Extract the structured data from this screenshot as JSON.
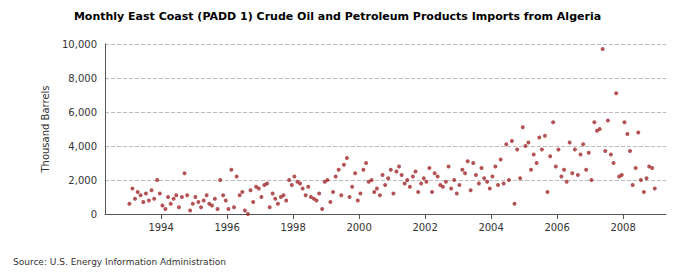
{
  "chart_data": {
    "type": "scatter",
    "title": "Monthly East Coast (PADD 1) Crude Oil and Petroleum Products Imports from Algeria",
    "y_label": "Thousand Barrels",
    "annotations": [
      "Source: U.S. Energy Information Administration"
    ],
    "color": "#a0282a",
    "marker": "circle",
    "grid": true,
    "xlim": [
      1992.3,
      2009.3
    ],
    "xticks": [
      1994,
      1996,
      1998,
      2000,
      2002,
      2004,
      2006,
      2008
    ],
    "ylim": [
      0,
      10000
    ],
    "yticks": [
      0,
      {
        "value": 2000,
        "label": "2,000"
      },
      {
        "value": 4000,
        "label": "4,000"
      },
      {
        "value": 6000,
        "label": "6,000"
      },
      {
        "value": 8000,
        "label": "8,000"
      },
      {
        "value": 10000,
        "label": "10,000"
      }
    ],
    "x": [
      1993.04,
      1993.13,
      1993.21,
      1993.29,
      1993.38,
      1993.46,
      1993.54,
      1993.63,
      1993.71,
      1993.79,
      1993.88,
      1993.96,
      1994.04,
      1994.13,
      1994.21,
      1994.29,
      1994.38,
      1994.46,
      1994.54,
      1994.63,
      1994.71,
      1994.79,
      1994.88,
      1994.96,
      1995.04,
      1995.13,
      1995.21,
      1995.29,
      1995.38,
      1995.46,
      1995.54,
      1995.63,
      1995.71,
      1995.79,
      1995.88,
      1995.96,
      1996.04,
      1996.13,
      1996.21,
      1996.29,
      1996.38,
      1996.46,
      1996.54,
      1996.63,
      1996.71,
      1996.79,
      1996.88,
      1996.96,
      1997.04,
      1997.13,
      1997.21,
      1997.29,
      1997.38,
      1997.46,
      1997.54,
      1997.63,
      1997.71,
      1997.79,
      1997.88,
      1997.96,
      1998.04,
      1998.13,
      1998.21,
      1998.29,
      1998.38,
      1998.46,
      1998.54,
      1998.63,
      1998.71,
      1998.79,
      1998.88,
      1998.96,
      1999.04,
      1999.13,
      1999.21,
      1999.29,
      1999.38,
      1999.46,
      1999.54,
      1999.63,
      1999.71,
      1999.79,
      1999.88,
      1999.96,
      2000.04,
      2000.13,
      2000.21,
      2000.29,
      2000.38,
      2000.46,
      2000.54,
      2000.63,
      2000.71,
      2000.79,
      2000.88,
      2000.96,
      2001.04,
      2001.13,
      2001.21,
      2001.29,
      2001.38,
      2001.46,
      2001.54,
      2001.63,
      2001.71,
      2001.79,
      2001.88,
      2001.96,
      2002.04,
      2002.13,
      2002.21,
      2002.29,
      2002.38,
      2002.46,
      2002.54,
      2002.63,
      2002.71,
      2002.79,
      2002.88,
      2002.96,
      2003.04,
      2003.13,
      2003.21,
      2003.29,
      2003.38,
      2003.46,
      2003.54,
      2003.63,
      2003.71,
      2003.79,
      2003.88,
      2003.96,
      2004.04,
      2004.13,
      2004.21,
      2004.29,
      2004.38,
      2004.46,
      2004.54,
      2004.63,
      2004.71,
      2004.79,
      2004.88,
      2004.96,
      2005.04,
      2005.13,
      2005.21,
      2005.29,
      2005.38,
      2005.46,
      2005.54,
      2005.63,
      2005.71,
      2005.79,
      2005.88,
      2005.96,
      2006.04,
      2006.13,
      2006.21,
      2006.29,
      2006.38,
      2006.46,
      2006.54,
      2006.63,
      2006.71,
      2006.79,
      2006.88,
      2006.96,
      2007.04,
      2007.13,
      2007.21,
      2007.29,
      2007.38,
      2007.46,
      2007.54,
      2007.63,
      2007.71,
      2007.79,
      2007.88,
      2007.96,
      2008.04,
      2008.13,
      2008.21,
      2008.29,
      2008.38,
      2008.46,
      2008.54,
      2008.63,
      2008.71,
      2008.79,
      2008.88,
      2008.96
    ],
    "values": [
      600,
      1500,
      900,
      1300,
      1100,
      700,
      1200,
      800,
      1400,
      900,
      2000,
      1200,
      500,
      300,
      1000,
      600,
      900,
      1100,
      400,
      1000,
      2400,
      1100,
      200,
      600,
      1000,
      700,
      400,
      800,
      1100,
      600,
      500,
      900,
      300,
      2000,
      1100,
      800,
      300,
      2600,
      400,
      2200,
      1100,
      1300,
      200,
      0,
      1400,
      700,
      1600,
      1500,
      1000,
      1700,
      1800,
      400,
      1200,
      900,
      600,
      1000,
      1100,
      800,
      2000,
      1700,
      2200,
      1900,
      1800,
      1500,
      1100,
      1600,
      1000,
      900,
      800,
      1200,
      300,
      1900,
      2000,
      700,
      1300,
      2200,
      2600,
      1100,
      2900,
      3300,
      1000,
      1600,
      2400,
      800,
      1200,
      2600,
      3000,
      1900,
      2000,
      1300,
      1500,
      1100,
      2300,
      1700,
      2100,
      2600,
      1200,
      2500,
      2800,
      2300,
      1800,
      2000,
      1600,
      2200,
      2500,
      1300,
      1800,
      2100,
      1900,
      2700,
      1300,
      2400,
      2200,
      1700,
      1600,
      1900,
      2800,
      1500,
      2000,
      1200,
      1700,
      2600,
      2400,
      3100,
      1400,
      3000,
      2300,
      1800,
      2700,
      2100,
      1900,
      1500,
      2200,
      2800,
      1700,
      3200,
      1800,
      4100,
      2000,
      4300,
      600,
      3800,
      2100,
      5100,
      4000,
      4200,
      2600,
      3500,
      3000,
      4500,
      3800,
      4600,
      1300,
      3400,
      5400,
      2800,
      3800,
      2200,
      2600,
      1900,
      4200,
      2400,
      3800,
      2300,
      3500,
      4100,
      2600,
      3600,
      2000,
      5400,
      4900,
      5000,
      9700,
      3700,
      5500,
      3500,
      3000,
      7100,
      2200,
      2300,
      5400,
      4700,
      3700,
      1700,
      2700,
      4800,
      2000,
      1300,
      2100,
      2800,
      2700,
      1500
    ]
  }
}
